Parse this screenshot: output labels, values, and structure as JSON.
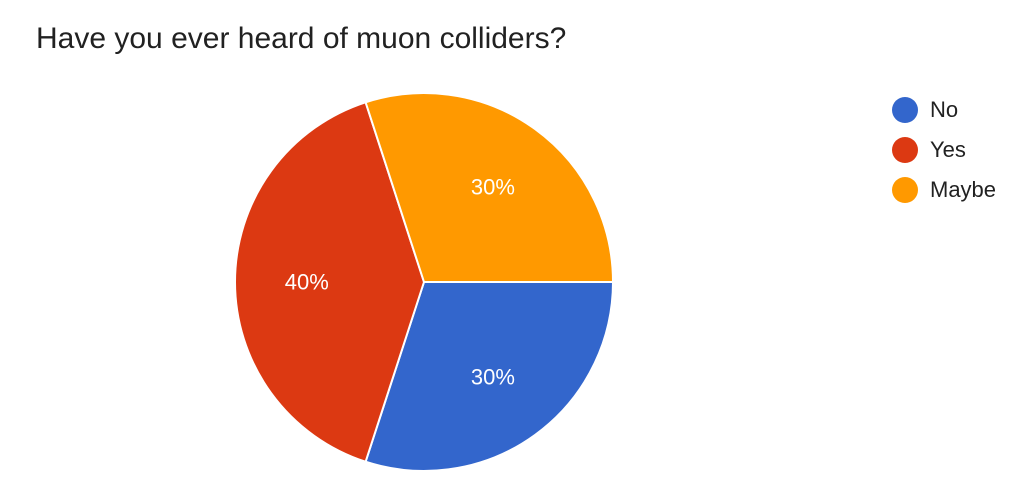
{
  "chart_data": {
    "type": "pie",
    "title": "Have you ever heard of muon colliders?",
    "slices": [
      {
        "label": "No",
        "value": 30,
        "display": "30%",
        "color": "#3366cc"
      },
      {
        "label": "Yes",
        "value": 40,
        "display": "40%",
        "color": "#dc3912"
      },
      {
        "label": "Maybe",
        "value": 30,
        "display": "30%",
        "color": "#ff9900"
      }
    ],
    "legend_position": "right",
    "start_direction": "east",
    "direction": "clockwise"
  }
}
